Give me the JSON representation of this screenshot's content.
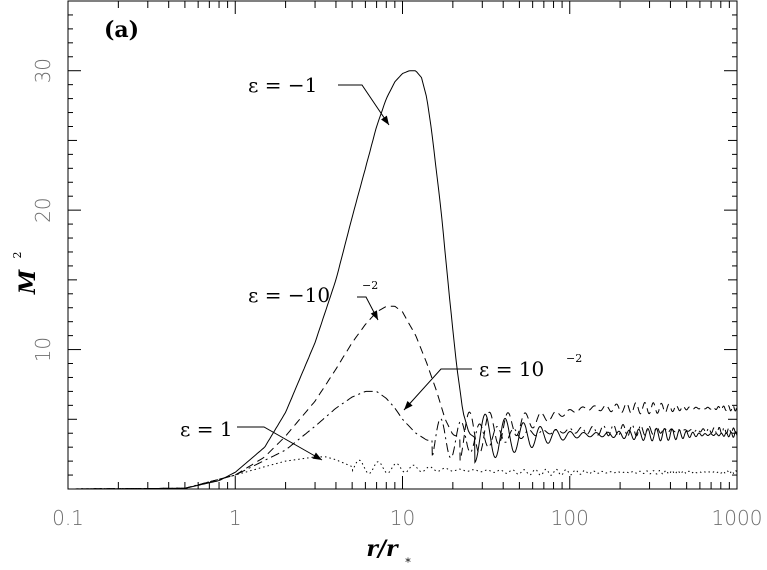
{
  "chart_data": {
    "type": "line",
    "panel_label": "(a)",
    "xlabel_main": "r/r",
    "xlabel_sub": "*",
    "ylabel_main": "M",
    "ylabel_sup": "2",
    "xscale": "log",
    "xlim": [
      0.1,
      1000
    ],
    "ylim": [
      0,
      35
    ],
    "x_ticks": [
      0.1,
      1,
      10,
      100,
      1000
    ],
    "x_tick_labels": [
      "0.1",
      "1",
      "10",
      "100",
      "1000"
    ],
    "y_ticks": [
      10,
      20,
      30
    ],
    "y_tick_labels": [
      "10",
      "20",
      "30"
    ],
    "grid": false,
    "series": [
      {
        "name": "ε = −1",
        "style": "solid",
        "points": [
          [
            0.1,
            0
          ],
          [
            0.5,
            0.05
          ],
          [
            0.8,
            0.6
          ],
          [
            1,
            1.2
          ],
          [
            1.5,
            3
          ],
          [
            2,
            5.5
          ],
          [
            3,
            10.5
          ],
          [
            4,
            15
          ],
          [
            5,
            19.5
          ],
          [
            6,
            23
          ],
          [
            7,
            26
          ],
          [
            8,
            28
          ],
          [
            9,
            29.2
          ],
          [
            10,
            29.8
          ],
          [
            11,
            30
          ],
          [
            12,
            30
          ],
          [
            13,
            29.5
          ],
          [
            14,
            28
          ],
          [
            15,
            25.5
          ],
          [
            17,
            20
          ],
          [
            19,
            14
          ],
          [
            21,
            9
          ],
          [
            23,
            5.5
          ],
          [
            25,
            4
          ],
          [
            27,
            3.7
          ]
        ],
        "osc_from": 27,
        "osc_amp": 1.8,
        "osc_amp_end": 0.25,
        "osc_base_end": 3.9,
        "osc_period": 0.13
      },
      {
        "name": "ε = −10⁻²",
        "style": "dashed",
        "points": [
          [
            0.1,
            0
          ],
          [
            0.5,
            0.05
          ],
          [
            1,
            1
          ],
          [
            1.5,
            2.3
          ],
          [
            2,
            3.8
          ],
          [
            3,
            6.3
          ],
          [
            4,
            8.6
          ],
          [
            5,
            10.5
          ],
          [
            6,
            11.8
          ],
          [
            7,
            12.7
          ],
          [
            8,
            13.1
          ],
          [
            9,
            13.1
          ],
          [
            10,
            12.7
          ],
          [
            12,
            11
          ],
          [
            14,
            9
          ],
          [
            16,
            7
          ],
          [
            18,
            5
          ],
          [
            20,
            3.9
          ],
          [
            22,
            3.7
          ]
        ],
        "osc_from": 22,
        "osc_amp": 1.8,
        "osc_amp_end": 0.2,
        "osc_base_end": 5.8,
        "osc_period": 0.13
      },
      {
        "name": "ε = 10⁻²",
        "style": "dashdot",
        "points": [
          [
            0.1,
            0
          ],
          [
            0.5,
            0.05
          ],
          [
            1,
            1
          ],
          [
            2,
            2.8
          ],
          [
            3,
            4.5
          ],
          [
            4,
            5.8
          ],
          [
            5,
            6.6
          ],
          [
            6,
            7
          ],
          [
            7,
            7
          ],
          [
            8,
            6.5
          ],
          [
            9,
            5.8
          ],
          [
            10,
            5
          ],
          [
            12,
            4
          ],
          [
            14,
            3.5
          ],
          [
            15,
            3.5
          ]
        ],
        "osc_from": 15,
        "osc_amp": 1.6,
        "osc_amp_end": 0.2,
        "osc_base_end": 4.2,
        "osc_period": 0.13
      },
      {
        "name": "ε = 1",
        "style": "dotted",
        "points": [
          [
            0.1,
            0
          ],
          [
            0.5,
            0.05
          ],
          [
            1,
            1
          ],
          [
            1.5,
            1.6
          ],
          [
            2,
            2
          ],
          [
            3,
            2.3
          ],
          [
            3.5,
            2.3
          ],
          [
            4,
            2.1
          ],
          [
            5,
            1.6
          ]
        ],
        "osc_from": 5,
        "osc_amp": 0.5,
        "osc_amp_end": 0.1,
        "osc_base_end": 1.2,
        "osc_period": 0.12
      }
    ],
    "annotations": [
      {
        "prefix": "ε = −1",
        "sup": ""
      },
      {
        "prefix": "ε = −10",
        "sup": "−2"
      },
      {
        "prefix": "ε = 10",
        "sup": "−2"
      },
      {
        "prefix": "ε = 1",
        "sup": ""
      }
    ]
  }
}
